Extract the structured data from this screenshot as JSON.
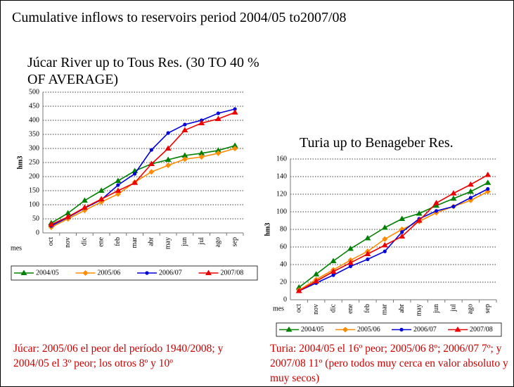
{
  "slide": {
    "title": "Cumulative inflows to reservoirs period 2004/05 to2007/08",
    "notes": [
      "Júcar: 2005/06 el peor del período 1940/2008; y 2004/05 el 3º peor; los otros 8º y 10º",
      "Turia: 2004/05 el 16º peor; 2005/06 8º; 2006/07 7º; y 2007/08 11º (pero todos muy cerca en valor absoluto y muy secos)"
    ]
  },
  "chart_data": [
    {
      "type": "line",
      "title": "Júcar River up to Tous Res. (30 TO 40 % OF AVERAGE)",
      "x_label": "mes",
      "y_label": "hm3",
      "categories": [
        "oct",
        "nov",
        "dic",
        "ene",
        "feb",
        "mar",
        "abr",
        "may",
        "jun",
        "jul",
        "ago",
        "sep"
      ],
      "ylim": [
        0,
        500
      ],
      "yticks": [
        0,
        50,
        100,
        150,
        200,
        250,
        300,
        350,
        400,
        450,
        500
      ],
      "grid": true,
      "legend": "bottom",
      "series": [
        {
          "name": "2004/05",
          "color": "#008000",
          "marker": "triangle",
          "values": [
            35,
            70,
            115,
            150,
            185,
            220,
            245,
            260,
            275,
            283,
            293,
            310
          ]
        },
        {
          "name": "2005/06",
          "color": "#ff8c00",
          "marker": "diamond",
          "values": [
            20,
            50,
            80,
            110,
            138,
            180,
            217,
            240,
            262,
            270,
            283,
            300
          ]
        },
        {
          "name": "2006/07",
          "color": "#0000dd",
          "marker": "circle",
          "values": [
            25,
            55,
            88,
            118,
            170,
            210,
            295,
            355,
            385,
            400,
            425,
            440
          ]
        },
        {
          "name": "2007/08",
          "color": "#ee0000",
          "marker": "triangle",
          "values": [
            30,
            57,
            90,
            120,
            150,
            178,
            245,
            300,
            365,
            390,
            405,
            428
          ]
        }
      ]
    },
    {
      "type": "line",
      "title": "Turia up to Benageber Res.",
      "x_label": "mes",
      "y_label": "hm3",
      "categories": [
        "oct",
        "nov",
        "dic",
        "ene",
        "feb",
        "mar",
        "abr",
        "may",
        "jun",
        "jul",
        "ago",
        "sep"
      ],
      "ylim": [
        0,
        160
      ],
      "yticks": [
        0,
        20,
        40,
        60,
        80,
        100,
        120,
        140,
        160
      ],
      "grid": true,
      "legend": "bottom",
      "series": [
        {
          "name": "2004/05",
          "color": "#008000",
          "marker": "triangle",
          "values": [
            14,
            29,
            44,
            58,
            70,
            82,
            92,
            98,
            107,
            115,
            123,
            133
          ]
        },
        {
          "name": "2005/06",
          "color": "#ff8c00",
          "marker": "diamond",
          "values": [
            11,
            23,
            34,
            45,
            55,
            69,
            80,
            89,
            99,
            106,
            113,
            123
          ]
        },
        {
          "name": "2006/07",
          "color": "#0000dd",
          "marker": "circle",
          "values": [
            10,
            19,
            28,
            38,
            46,
            55,
            77,
            92,
            101,
            106,
            116,
            126
          ]
        },
        {
          "name": "2007/08",
          "color": "#ee0000",
          "marker": "triangle",
          "values": [
            10,
            21,
            32,
            42,
            52,
            62,
            72,
            90,
            110,
            121,
            131,
            142
          ]
        }
      ]
    }
  ]
}
